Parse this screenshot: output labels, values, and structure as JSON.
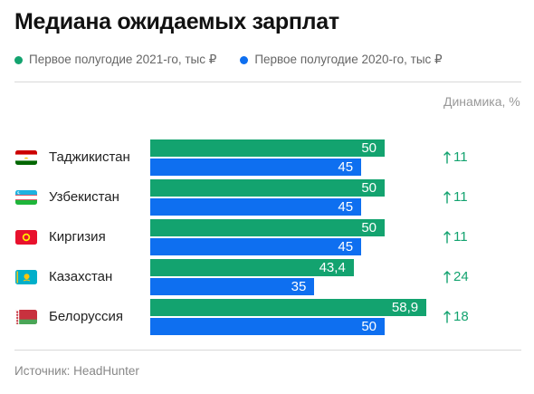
{
  "title": "Медиана ожидаемых зарплат",
  "colors": {
    "series_2021": "#13a36f",
    "series_2020": "#0e6ff0",
    "change": "#13a36f"
  },
  "legend": [
    {
      "label": "Первое полугодие 2021-го, тыс ₽",
      "color": "#13a36f"
    },
    {
      "label": "Первое полугодие 2020-го, тыс ₽",
      "color": "#0e6ff0"
    }
  ],
  "change_header": "Динамика, %",
  "source": "Источник:  HeadHunter",
  "chart_data": {
    "type": "bar",
    "orientation": "horizontal",
    "title": "Медиана ожидаемых зарплат",
    "categories": [
      "Таджикистан",
      "Узбекистан",
      "Киргизия",
      "Казахстан",
      "Белоруссия"
    ],
    "series": [
      {
        "name": "Первое полугодие 2021-го, тыс ₽",
        "values": [
          50,
          50,
          50,
          43.4,
          58.9
        ],
        "labels": [
          "50",
          "50",
          "50",
          "43,4",
          "58,9"
        ]
      },
      {
        "name": "Первое полугодие 2020-го, тыс ₽",
        "values": [
          45,
          45,
          45,
          35,
          50
        ],
        "labels": [
          "45",
          "45",
          "45",
          "35",
          "50"
        ]
      }
    ],
    "change": {
      "name": "Динамика, %",
      "values": [
        11,
        11,
        11,
        24,
        18
      ],
      "labels": [
        "11",
        "11",
        "11",
        "24",
        "18"
      ]
    },
    "flags": [
      "tajikistan-flag",
      "uzbekistan-flag",
      "kyrgyzstan-flag",
      "kazakhstan-flag",
      "belarus-flag"
    ],
    "grid": false,
    "legend_position": "top-left"
  }
}
